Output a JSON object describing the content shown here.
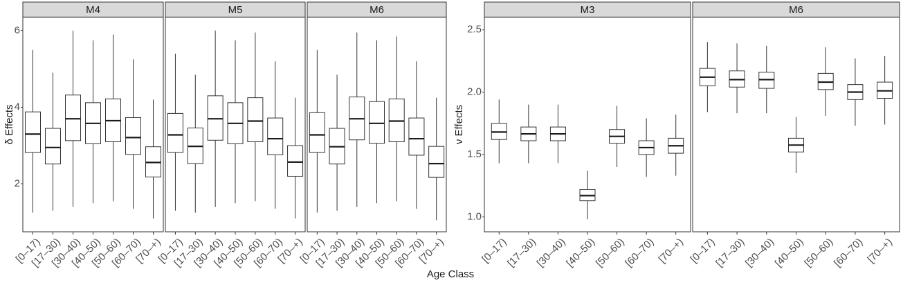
{
  "figure": {
    "xlabel": "Age Class"
  },
  "chart_data": [
    {
      "type": "boxplot",
      "group": "delta",
      "ylabel": "δ Effects",
      "ylim": [
        0.75,
        6.35
      ],
      "yticks": [
        2,
        4,
        6
      ],
      "categories": [
        "[0–17)",
        "[17–30)",
        "[30–40)",
        "[40–50)",
        "[50–60)",
        "[60–70)",
        "[70–+)"
      ],
      "panels": [
        {
          "strip": "M4",
          "boxes": [
            {
              "min": 1.25,
              "q1": 2.82,
              "median": 3.3,
              "q3": 3.88,
              "max": 5.5
            },
            {
              "min": 1.3,
              "q1": 2.52,
              "median": 2.95,
              "q3": 3.45,
              "max": 4.9
            },
            {
              "min": 1.4,
              "q1": 3.13,
              "median": 3.7,
              "q3": 4.32,
              "max": 6.0
            },
            {
              "min": 1.5,
              "q1": 3.05,
              "median": 3.58,
              "q3": 4.12,
              "max": 5.75
            },
            {
              "min": 1.55,
              "q1": 3.1,
              "median": 3.65,
              "q3": 4.22,
              "max": 5.9
            },
            {
              "min": 1.35,
              "q1": 2.77,
              "median": 3.21,
              "q3": 3.73,
              "max": 5.25
            },
            {
              "min": 1.1,
              "q1": 2.18,
              "median": 2.56,
              "q3": 2.97,
              "max": 4.2
            }
          ]
        },
        {
          "strip": "M5",
          "boxes": [
            {
              "min": 1.3,
              "q1": 2.82,
              "median": 3.28,
              "q3": 3.84,
              "max": 5.4
            },
            {
              "min": 1.25,
              "q1": 2.53,
              "median": 2.98,
              "q3": 3.46,
              "max": 4.85
            },
            {
              "min": 1.4,
              "q1": 3.14,
              "median": 3.7,
              "q3": 4.3,
              "max": 6.0
            },
            {
              "min": 1.5,
              "q1": 3.05,
              "median": 3.58,
              "q3": 4.12,
              "max": 5.75
            },
            {
              "min": 1.55,
              "q1": 3.1,
              "median": 3.64,
              "q3": 4.25,
              "max": 5.95
            },
            {
              "min": 1.35,
              "q1": 2.76,
              "median": 3.18,
              "q3": 3.72,
              "max": 5.2
            },
            {
              "min": 1.1,
              "q1": 2.2,
              "median": 2.57,
              "q3": 3.0,
              "max": 4.25
            }
          ]
        },
        {
          "strip": "M6",
          "boxes": [
            {
              "min": 1.25,
              "q1": 2.82,
              "median": 3.28,
              "q3": 3.86,
              "max": 5.5
            },
            {
              "min": 1.3,
              "q1": 2.52,
              "median": 2.97,
              "q3": 3.45,
              "max": 4.85
            },
            {
              "min": 1.4,
              "q1": 3.15,
              "median": 3.7,
              "q3": 4.27,
              "max": 5.95
            },
            {
              "min": 1.5,
              "q1": 3.06,
              "median": 3.58,
              "q3": 4.15,
              "max": 5.75
            },
            {
              "min": 1.55,
              "q1": 3.1,
              "median": 3.64,
              "q3": 4.22,
              "max": 5.85
            },
            {
              "min": 1.35,
              "q1": 2.75,
              "median": 3.18,
              "q3": 3.72,
              "max": 5.2
            },
            {
              "min": 1.05,
              "q1": 2.17,
              "median": 2.53,
              "q3": 2.98,
              "max": 4.25
            }
          ]
        }
      ]
    },
    {
      "type": "boxplot",
      "group": "nu",
      "ylabel": "ν Effects",
      "ylim": [
        0.88,
        2.6
      ],
      "yticks": [
        1.0,
        1.5,
        2.0,
        2.5
      ],
      "yticklabels": [
        "1.0",
        "1.5",
        "2.0",
        "2.5"
      ],
      "categories": [
        "[0–17)",
        "[17–30)",
        "[30–40)",
        "[40–50)",
        "[50–60)",
        "[60–70)",
        "[70–+)"
      ],
      "panels": [
        {
          "strip": "M3",
          "boxes": [
            {
              "min": 1.43,
              "q1": 1.62,
              "median": 1.68,
              "q3": 1.75,
              "max": 1.94
            },
            {
              "min": 1.43,
              "q1": 1.61,
              "median": 1.665,
              "q3": 1.72,
              "max": 1.9
            },
            {
              "min": 1.43,
              "q1": 1.61,
              "median": 1.665,
              "q3": 1.72,
              "max": 1.9
            },
            {
              "min": 0.98,
              "q1": 1.13,
              "median": 1.17,
              "q3": 1.22,
              "max": 1.37
            },
            {
              "min": 1.4,
              "q1": 1.59,
              "median": 1.645,
              "q3": 1.7,
              "max": 1.89
            },
            {
              "min": 1.32,
              "q1": 1.5,
              "median": 1.555,
              "q3": 1.61,
              "max": 1.79
            },
            {
              "min": 1.33,
              "q1": 1.51,
              "median": 1.57,
              "q3": 1.63,
              "max": 1.82
            }
          ]
        },
        {
          "strip": "M6",
          "boxes": [
            {
              "min": 1.84,
              "q1": 2.05,
              "median": 2.12,
              "q3": 2.19,
              "max": 2.4
            },
            {
              "min": 1.83,
              "q1": 2.04,
              "median": 2.1,
              "q3": 2.17,
              "max": 2.39
            },
            {
              "min": 1.83,
              "q1": 2.03,
              "median": 2.1,
              "q3": 2.16,
              "max": 2.37
            },
            {
              "min": 1.35,
              "q1": 1.52,
              "median": 1.575,
              "q3": 1.63,
              "max": 1.8
            },
            {
              "min": 1.81,
              "q1": 2.02,
              "median": 2.08,
              "q3": 2.15,
              "max": 2.36
            },
            {
              "min": 1.73,
              "q1": 1.94,
              "median": 2.0,
              "q3": 2.06,
              "max": 2.27
            },
            {
              "min": 1.74,
              "q1": 1.95,
              "median": 2.01,
              "q3": 2.08,
              "max": 2.29
            }
          ]
        }
      ]
    }
  ]
}
